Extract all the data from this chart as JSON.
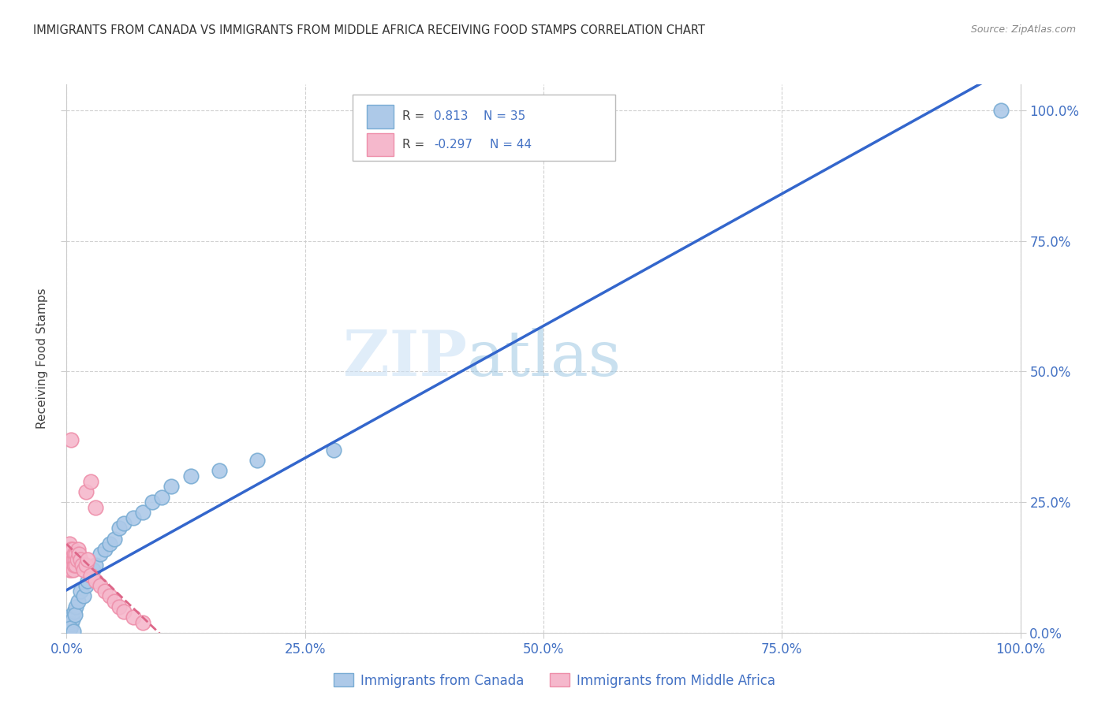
{
  "title": "IMMIGRANTS FROM CANADA VS IMMIGRANTS FROM MIDDLE AFRICA RECEIVING FOOD STAMPS CORRELATION CHART",
  "source": "Source: ZipAtlas.com",
  "ylabel": "Receiving Food Stamps",
  "xlim": [
    0.0,
    1.0
  ],
  "ylim": [
    0.0,
    1.05
  ],
  "xticks": [
    0.0,
    0.25,
    0.5,
    0.75,
    1.0
  ],
  "yticks": [
    0.0,
    0.25,
    0.5,
    0.75,
    1.0
  ],
  "xticklabels": [
    "0.0%",
    "25.0%",
    "50.0%",
    "75.0%",
    "100.0%"
  ],
  "yticklabels": [
    "0.0%",
    "25.0%",
    "50.0%",
    "75.0%",
    "100.0%"
  ],
  "watermark_zip": "ZIP",
  "watermark_atlas": "atlas",
  "canada_color": "#adc9e8",
  "canada_edge_color": "#7aadd4",
  "middle_africa_color": "#f5b8cc",
  "middle_africa_edge_color": "#ee8faa",
  "regression_canada_color": "#3366cc",
  "regression_africa_color": "#dd6688",
  "R_canada": 0.813,
  "N_canada": 35,
  "R_africa": -0.297,
  "N_africa": 44,
  "legend_label_canada": "Immigrants from Canada",
  "legend_label_africa": "Immigrants from Middle Africa",
  "canada_x": [
    0.002,
    0.004,
    0.005,
    0.003,
    0.001,
    0.006,
    0.004,
    0.008,
    0.01,
    0.009,
    0.012,
    0.015,
    0.018,
    0.02,
    0.022,
    0.025,
    0.028,
    0.03,
    0.035,
    0.04,
    0.045,
    0.05,
    0.055,
    0.06,
    0.07,
    0.08,
    0.09,
    0.1,
    0.11,
    0.13,
    0.16,
    0.2,
    0.28,
    0.98,
    0.007
  ],
  "canada_y": [
    0.02,
    0.01,
    0.015,
    0.005,
    0.03,
    0.025,
    0.008,
    0.04,
    0.05,
    0.035,
    0.06,
    0.08,
    0.07,
    0.09,
    0.1,
    0.11,
    0.12,
    0.13,
    0.15,
    0.16,
    0.17,
    0.18,
    0.2,
    0.21,
    0.22,
    0.23,
    0.25,
    0.26,
    0.28,
    0.3,
    0.31,
    0.33,
    0.35,
    1.0,
    0.003
  ],
  "africa_x": [
    0.001,
    0.002,
    0.002,
    0.003,
    0.003,
    0.003,
    0.004,
    0.004,
    0.004,
    0.005,
    0.005,
    0.005,
    0.006,
    0.006,
    0.006,
    0.007,
    0.007,
    0.008,
    0.008,
    0.009,
    0.01,
    0.01,
    0.011,
    0.012,
    0.013,
    0.015,
    0.016,
    0.018,
    0.02,
    0.022,
    0.025,
    0.03,
    0.035,
    0.04,
    0.045,
    0.05,
    0.055,
    0.06,
    0.07,
    0.08,
    0.02,
    0.025,
    0.03,
    0.005
  ],
  "africa_y": [
    0.14,
    0.15,
    0.13,
    0.16,
    0.12,
    0.17,
    0.14,
    0.13,
    0.15,
    0.16,
    0.14,
    0.12,
    0.15,
    0.13,
    0.16,
    0.14,
    0.12,
    0.15,
    0.13,
    0.14,
    0.15,
    0.13,
    0.14,
    0.16,
    0.15,
    0.14,
    0.13,
    0.12,
    0.13,
    0.14,
    0.11,
    0.1,
    0.09,
    0.08,
    0.07,
    0.06,
    0.05,
    0.04,
    0.03,
    0.02,
    0.27,
    0.29,
    0.24,
    0.37
  ],
  "background_color": "#ffffff",
  "grid_color": "#cccccc",
  "tick_color": "#4472c4",
  "title_color": "#333333"
}
